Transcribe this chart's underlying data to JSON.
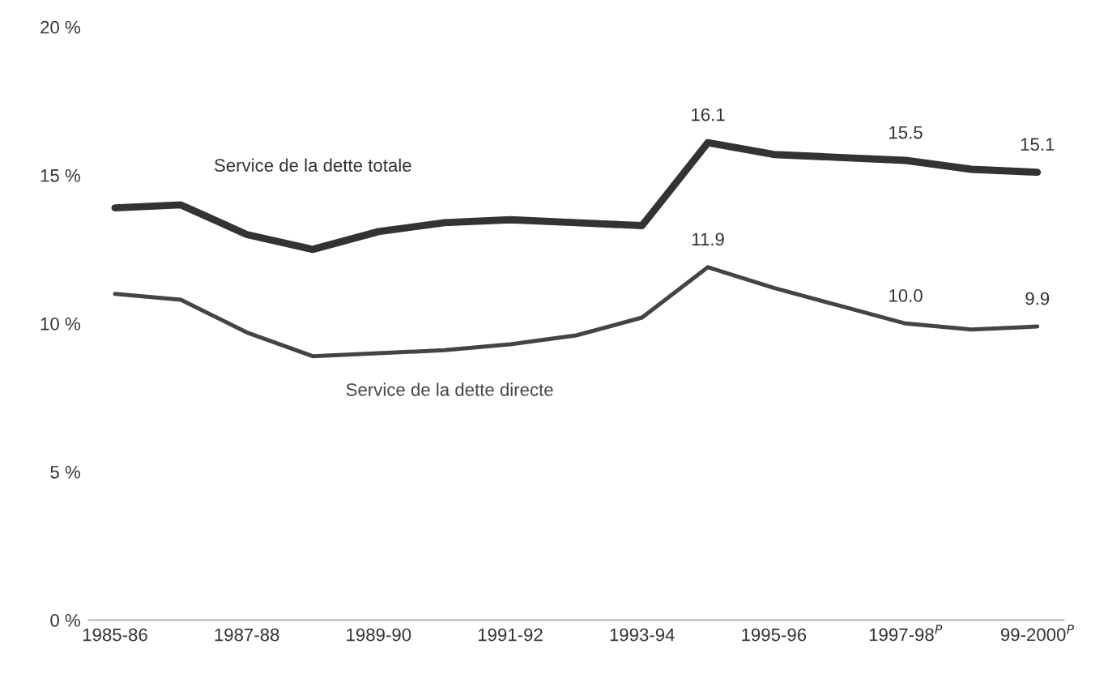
{
  "chart_data": {
    "type": "line",
    "categories": [
      "1985-86",
      null,
      "1987-88",
      null,
      "1989-90",
      null,
      "1991-92",
      null,
      "1993-94",
      null,
      "1995-96",
      null,
      "1997-98$^{P}$",
      null,
      "99-2000$^{P}$"
    ],
    "series": [
      {
        "name": "Service de la dette totale",
        "color": "#333333",
        "values": [
          13.9,
          14.0,
          13.0,
          12.5,
          13.1,
          13.4,
          13.5,
          13.4,
          13.3,
          16.1,
          15.7,
          15.6,
          15.5,
          15.2,
          15.1
        ],
        "value_labels": [
          null,
          null,
          null,
          null,
          null,
          null,
          null,
          null,
          null,
          "16.1",
          null,
          null,
          "15.5",
          null,
          "15.1"
        ]
      },
      {
        "name": "Service de la dette directe",
        "color": "#444444",
        "values": [
          11.0,
          10.8,
          9.7,
          8.9,
          9.0,
          9.1,
          9.3,
          9.6,
          10.2,
          11.9,
          11.2,
          10.6,
          10.0,
          9.8,
          9.9
        ],
        "value_labels": [
          null,
          null,
          null,
          null,
          null,
          null,
          null,
          null,
          null,
          "11.9",
          null,
          null,
          "10.0",
          null,
          "9.9"
        ]
      }
    ],
    "ylim": [
      0,
      20
    ],
    "yticks": [
      {
        "value": 0,
        "label": "0 %"
      },
      {
        "value": 5,
        "label": "5 %"
      },
      {
        "value": 10,
        "label": "10 %"
      },
      {
        "value": 15,
        "label": "15 %"
      },
      {
        "value": 20,
        "label": "20 %"
      }
    ],
    "grid": false,
    "legend": false,
    "marker": "none",
    "line_style": "solid"
  }
}
